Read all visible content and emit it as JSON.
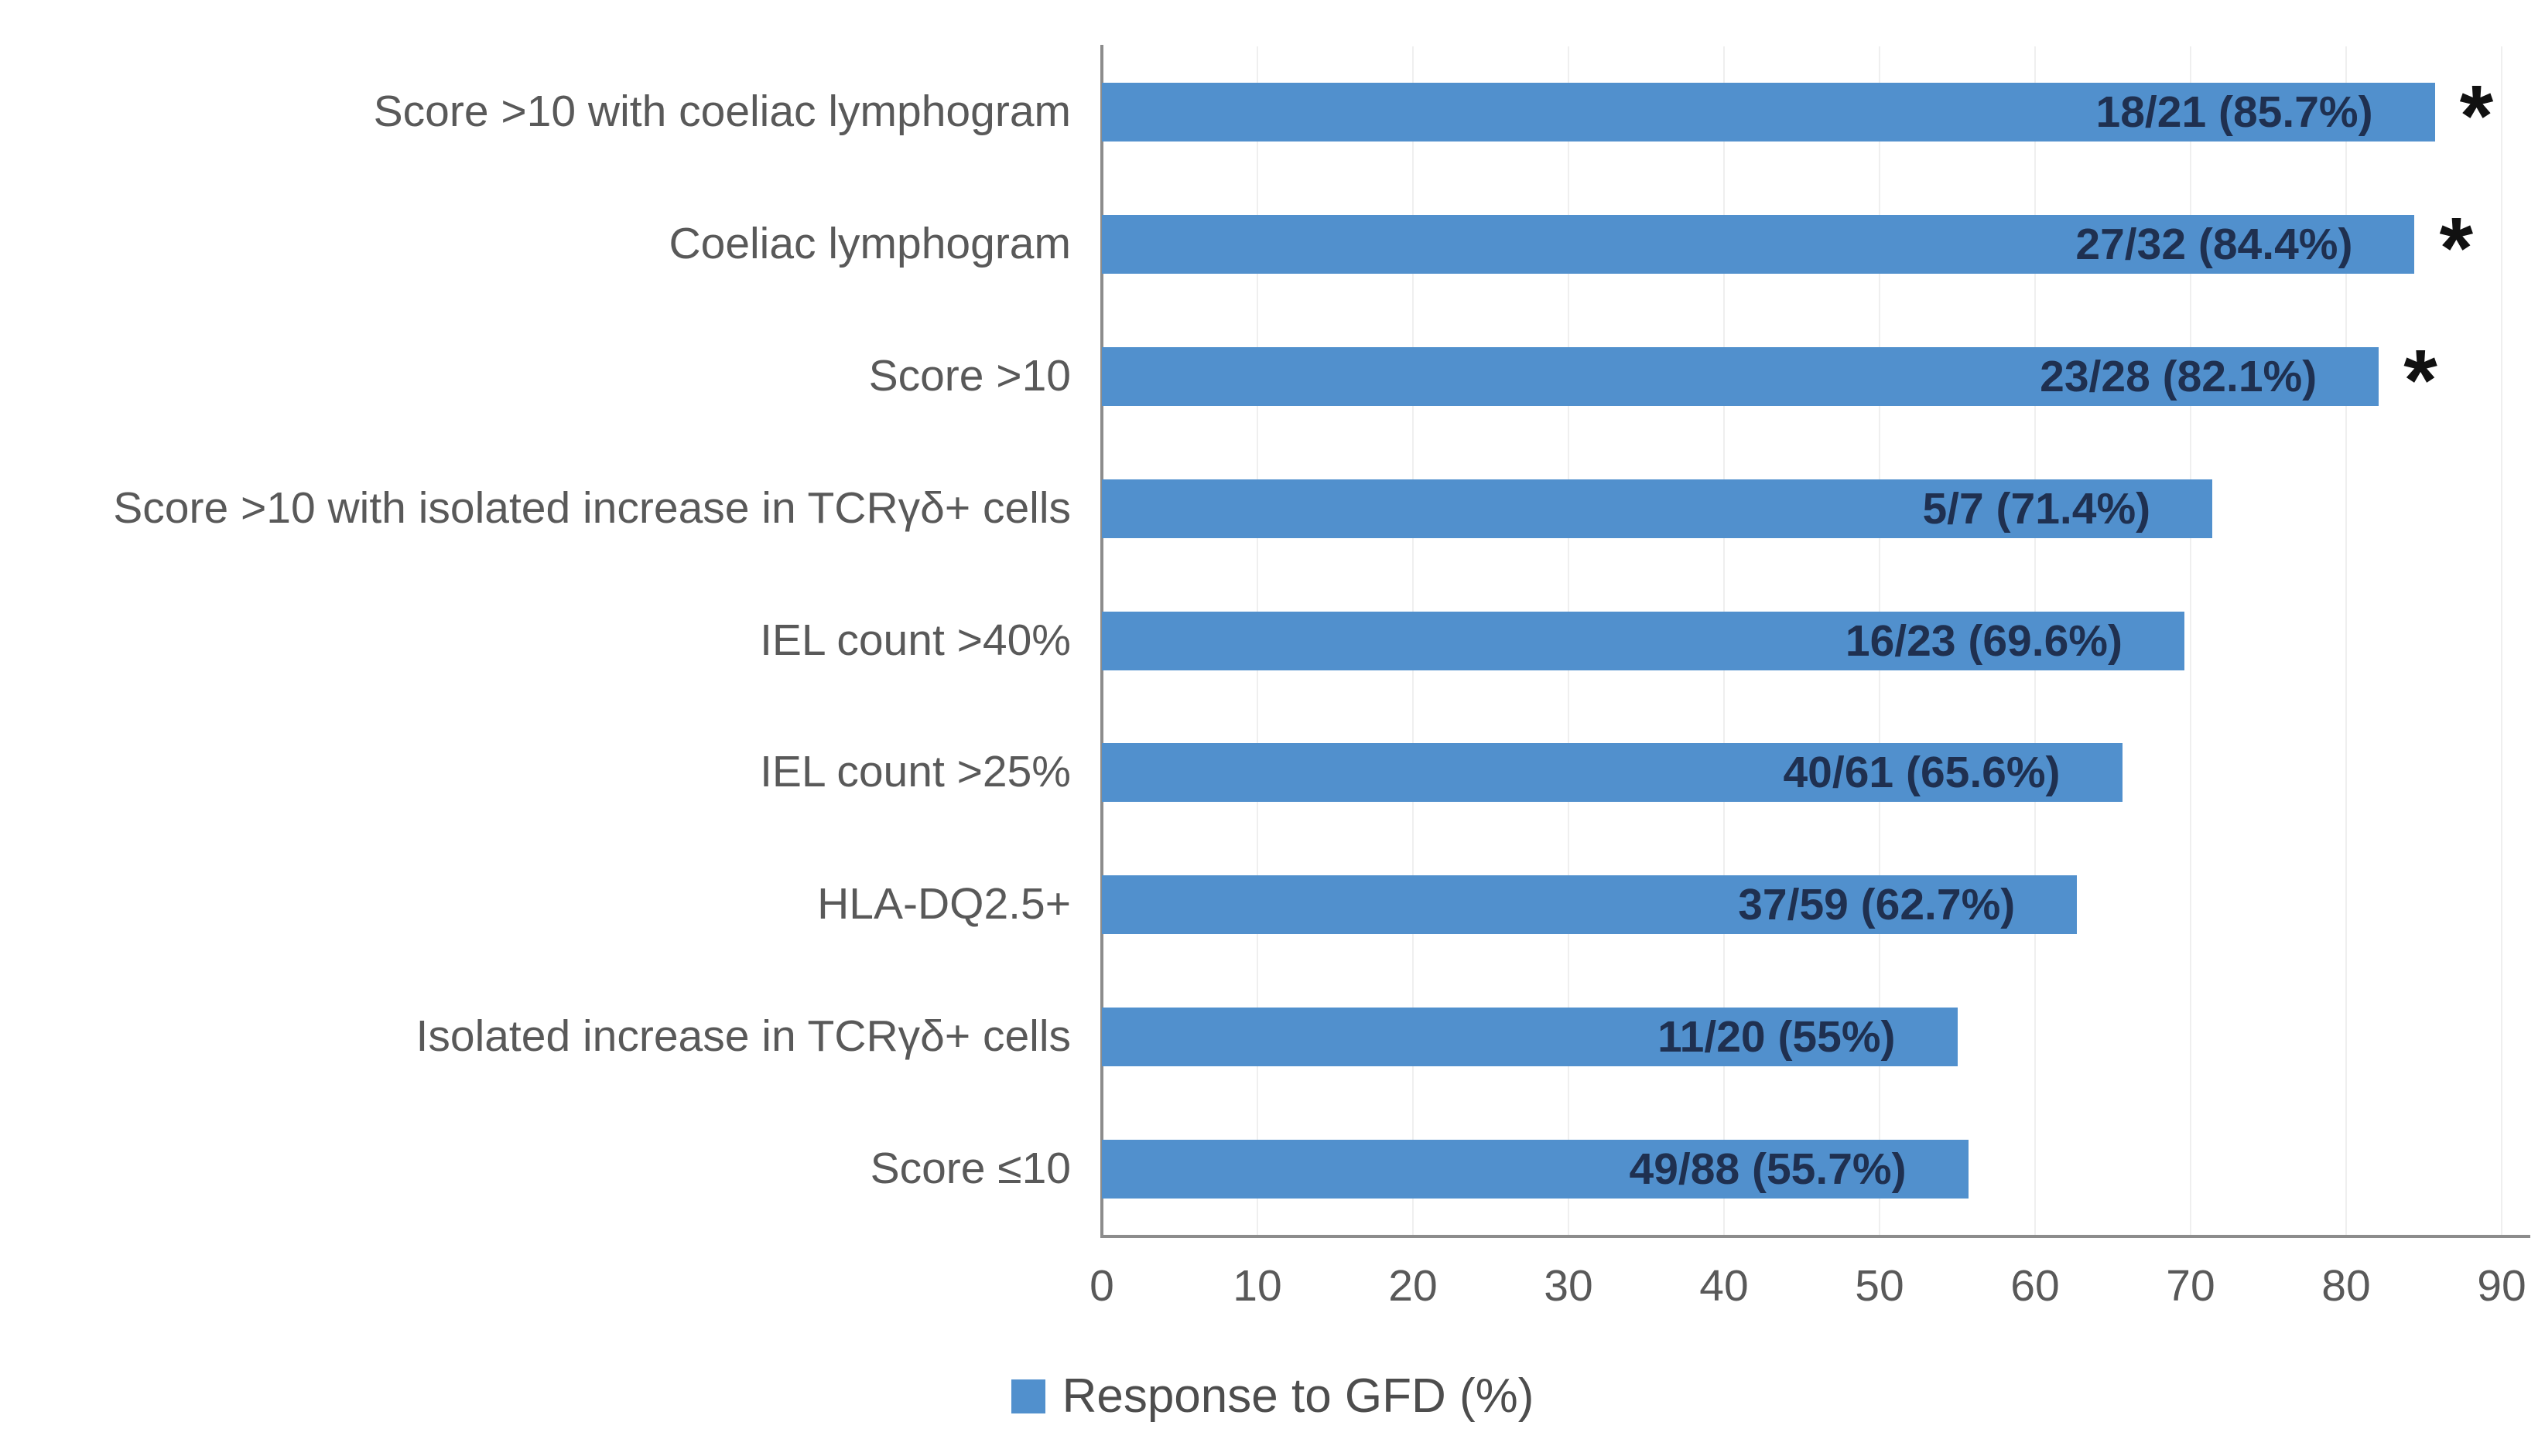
{
  "figure": {
    "background": "#ffffff"
  },
  "chart_data": {
    "type": "bar",
    "orientation": "horizontal",
    "title": "",
    "xlabel": "",
    "ylabel": "",
    "xlim": [
      0,
      90
    ],
    "x_ticks": [
      "0",
      "10",
      "20",
      "30",
      "40",
      "50",
      "60",
      "70",
      "80",
      "90"
    ],
    "gridlines": "vertical-faint",
    "legend": {
      "label": "Response to GFD (%)",
      "marker": "square",
      "position": "bottom-center"
    },
    "series_name": "Response to GFD (%)",
    "significance_marker": "*",
    "bars": [
      {
        "category": "Score >10 with coeliac lymphogram",
        "label": "18/21 (85.7%)",
        "numerator": 18,
        "denominator": 21,
        "percent": 85.7,
        "significant": true
      },
      {
        "category": "Coeliac lymphogram",
        "label": "27/32 (84.4%)",
        "numerator": 27,
        "denominator": 32,
        "percent": 84.4,
        "significant": true
      },
      {
        "category": "Score >10",
        "label": "23/28 (82.1%)",
        "numerator": 23,
        "denominator": 28,
        "percent": 82.1,
        "significant": true
      },
      {
        "category": "Score >10 with isolated increase in TCRγδ+ cells",
        "label": "5/7 (71.4%)",
        "numerator": 5,
        "denominator": 7,
        "percent": 71.4,
        "significant": false
      },
      {
        "category": "IEL count >40%",
        "label": "16/23 (69.6%)",
        "numerator": 16,
        "denominator": 23,
        "percent": 69.6,
        "significant": false
      },
      {
        "category": "IEL count >25%",
        "label": "40/61 (65.6%)",
        "numerator": 40,
        "denominator": 61,
        "percent": 65.6,
        "significant": false
      },
      {
        "category": "HLA-DQ2.5+",
        "label": "37/59 (62.7%)",
        "numerator": 37,
        "denominator": 59,
        "percent": 62.7,
        "significant": false
      },
      {
        "category": "Isolated increase in TCRγδ+ cells",
        "label": "11/20 (55%)",
        "numerator": 11,
        "denominator": 20,
        "percent": 55,
        "significant": false
      },
      {
        "category": "Score ≤10",
        "label": "49/88 (55.7%)",
        "numerator": 49,
        "denominator": 88,
        "percent": 55.7,
        "significant": false
      }
    ],
    "colors": {
      "bar": "#5190cd",
      "data_label": "#1f3050",
      "category_label": "#595959",
      "tick_label": "#595959",
      "axis_line": "#8c8c8c",
      "gridline": "#efefef",
      "legend_text": "#4d4d4d",
      "significance_marker": "#111111"
    }
  }
}
